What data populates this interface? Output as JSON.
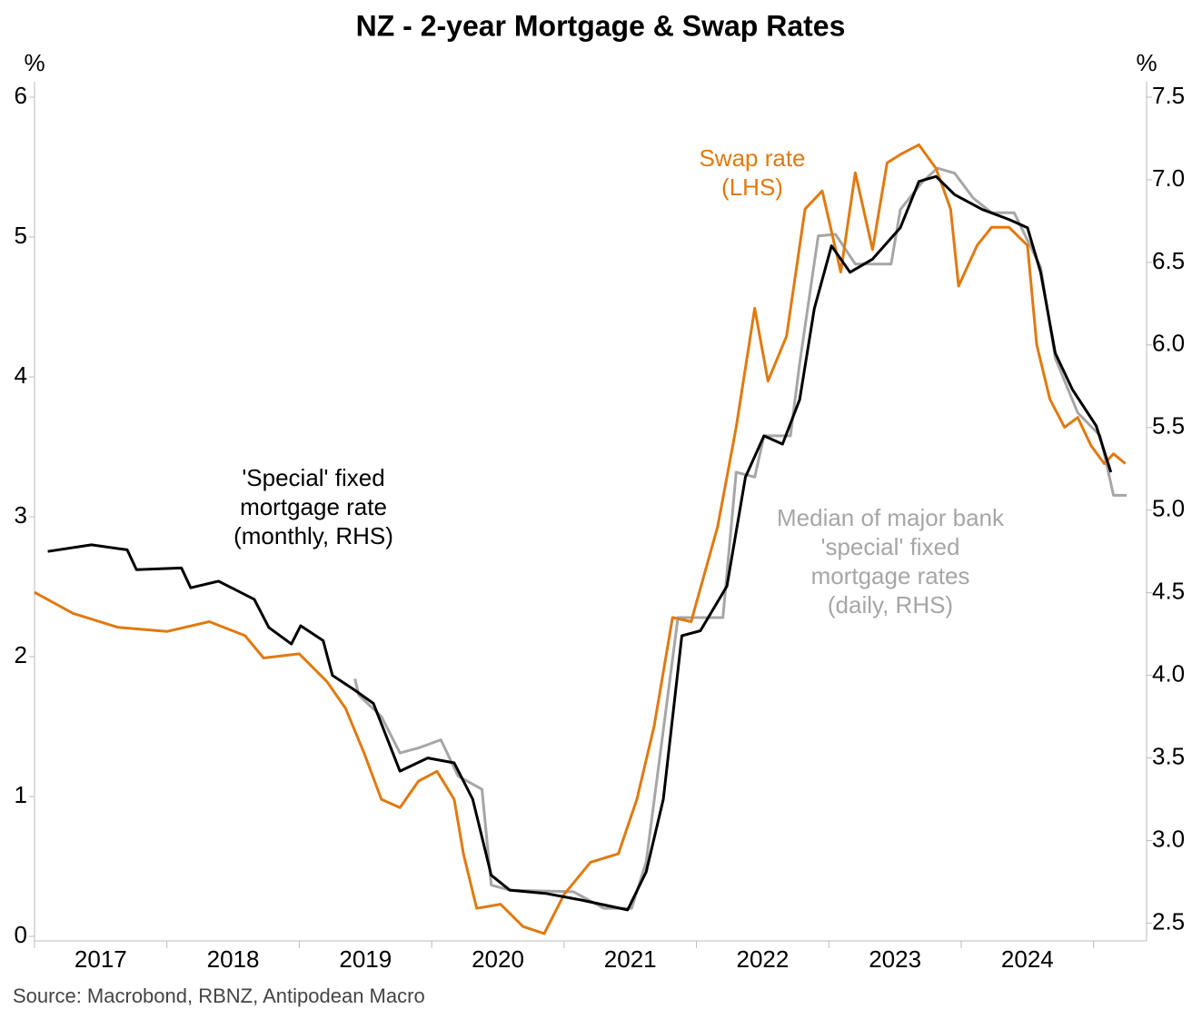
{
  "chart_data": {
    "type": "line",
    "title": "NZ - 2-year Mortgage & Swap Rates",
    "y_unit": "%",
    "y2_unit": "%",
    "source": "Source: Macrobond, RBNZ, Antipodean Macro",
    "xlim": [
      2017,
      2025.4
    ],
    "xticks": [
      2017,
      2018,
      2019,
      2020,
      2021,
      2022,
      2023,
      2024,
      2025
    ],
    "xlabels": [
      "2017",
      "2018",
      "2019",
      "2020",
      "2021",
      "2022",
      "2023",
      "2024"
    ],
    "ylim": [
      0,
      6
    ],
    "yticks": [
      0,
      1,
      2,
      3,
      4,
      5,
      6
    ],
    "y2lim": [
      2.42,
      7.5
    ],
    "y2ticks": [
      {
        "value": 2.5,
        "label": "2.5"
      },
      {
        "value": 3,
        "label": "3.0"
      },
      {
        "value": 3.5,
        "label": "3.5"
      },
      {
        "value": 4,
        "label": "4.0"
      },
      {
        "value": 4.5,
        "label": "4.5"
      },
      {
        "value": 5,
        "label": "5.0"
      },
      {
        "value": 5.5,
        "label": "5.5"
      },
      {
        "value": 6,
        "label": "6.0"
      },
      {
        "value": 6.5,
        "label": "6.5"
      },
      {
        "value": 7,
        "label": "7.0"
      },
      {
        "value": 7.5,
        "label": "7.5"
      }
    ],
    "series": [
      {
        "name": "Swap rate (LHS)",
        "color": "#e07a10",
        "axis": "y",
        "x": [
          2017.0,
          2017.29,
          2017.63,
          2018.0,
          2018.32,
          2018.59,
          2018.73,
          2019.0,
          2019.21,
          2019.35,
          2019.49,
          2019.62,
          2019.76,
          2019.9,
          2020.04,
          2020.17,
          2020.24,
          2020.34,
          2020.52,
          2020.69,
          2020.85,
          2021.0,
          2021.2,
          2021.41,
          2021.55,
          2021.68,
          2021.82,
          2021.96,
          2022.16,
          2022.3,
          2022.44,
          2022.54,
          2022.68,
          2022.82,
          2022.95,
          2023.09,
          2023.2,
          2023.33,
          2023.44,
          2023.54,
          2023.68,
          2023.81,
          2023.92,
          2023.98,
          2024.12,
          2024.23,
          2024.36,
          2024.5,
          2024.57,
          2024.67,
          2024.78,
          2024.88,
          2024.98,
          2025.08,
          2025.15,
          2025.24
        ],
        "values": [
          2.46,
          2.31,
          2.21,
          2.18,
          2.25,
          2.15,
          1.99,
          2.02,
          1.82,
          1.63,
          1.31,
          0.98,
          0.92,
          1.11,
          1.18,
          0.98,
          0.59,
          0.2,
          0.23,
          0.07,
          0.02,
          0.3,
          0.53,
          0.59,
          0.98,
          1.5,
          2.28,
          2.25,
          2.93,
          3.64,
          4.49,
          3.97,
          4.29,
          5.2,
          5.33,
          4.75,
          5.46,
          4.91,
          5.53,
          5.59,
          5.66,
          5.49,
          5.2,
          4.65,
          4.94,
          5.07,
          5.07,
          4.94,
          4.23,
          3.84,
          3.64,
          3.71,
          3.51,
          3.38,
          3.45,
          3.38
        ]
      },
      {
        "name": "'Special' fixed mortgage rate (monthly, RHS)",
        "color": "#000000",
        "axis": "y2",
        "x": [
          2017.1,
          2017.43,
          2017.7,
          2017.77,
          2018.11,
          2018.18,
          2018.39,
          2018.66,
          2018.77,
          2018.94,
          2019.01,
          2019.18,
          2019.25,
          2019.42,
          2019.56,
          2019.76,
          2019.97,
          2020.17,
          2020.31,
          2020.45,
          2020.59,
          2020.86,
          2021.13,
          2021.48,
          2021.62,
          2021.75,
          2021.89,
          2022.03,
          2022.23,
          2022.37,
          2022.51,
          2022.65,
          2022.78,
          2022.89,
          2023.02,
          2023.16,
          2023.33,
          2023.54,
          2023.68,
          2023.81,
          2023.95,
          2024.16,
          2024.36,
          2024.5,
          2024.6,
          2024.71,
          2024.84,
          2025.02,
          2025.13
        ],
        "values": [
          4.75,
          4.79,
          4.76,
          4.64,
          4.65,
          4.53,
          4.57,
          4.46,
          4.29,
          4.19,
          4.3,
          4.21,
          4.0,
          3.91,
          3.83,
          3.42,
          3.5,
          3.47,
          3.25,
          2.79,
          2.7,
          2.68,
          2.64,
          2.58,
          2.81,
          3.25,
          4.24,
          4.27,
          4.54,
          5.2,
          5.45,
          5.4,
          5.67,
          6.22,
          6.6,
          6.44,
          6.52,
          6.71,
          6.99,
          7.02,
          6.91,
          6.82,
          6.76,
          6.71,
          6.44,
          5.95,
          5.73,
          5.51,
          5.23
        ]
      },
      {
        "name": "Median of major bank 'special' fixed mortgage rates (daily, RHS)",
        "color": "#a6a6a6",
        "axis": "y2",
        "x": [
          2019.42,
          2019.45,
          2019.62,
          2019.76,
          2019.9,
          2020.07,
          2020.2,
          2020.38,
          2020.45,
          2020.59,
          2021.07,
          2021.3,
          2021.51,
          2021.62,
          2021.86,
          2022.2,
          2022.3,
          2022.44,
          2022.51,
          2022.71,
          2022.78,
          2022.92,
          2023.05,
          2023.2,
          2023.47,
          2023.54,
          2023.71,
          2023.82,
          2023.95,
          2024.09,
          2024.23,
          2024.4,
          2024.6,
          2024.71,
          2024.88,
          2025.05,
          2025.15,
          2025.25
        ],
        "values": [
          3.98,
          3.88,
          3.75,
          3.53,
          3.56,
          3.61,
          3.39,
          3.31,
          2.73,
          2.7,
          2.69,
          2.59,
          2.59,
          2.87,
          4.35,
          4.35,
          5.23,
          5.2,
          5.45,
          5.45,
          5.89,
          6.66,
          6.67,
          6.49,
          6.49,
          6.82,
          6.99,
          7.07,
          7.04,
          6.89,
          6.8,
          6.8,
          6.47,
          5.92,
          5.59,
          5.45,
          5.09,
          5.09
        ]
      }
    ],
    "annotations": [
      {
        "lines": [
          "Swap rate",
          "(LHS)"
        ],
        "color": "#e07a10"
      },
      {
        "lines": [
          "'Special' fixed",
          "mortgage rate",
          "(monthly, RHS)"
        ],
        "color": "#000000"
      },
      {
        "lines": [
          "Median of major bank",
          "'special' fixed",
          "mortgage rates",
          "(daily, RHS)"
        ],
        "color": "#a6a6a6"
      }
    ]
  }
}
